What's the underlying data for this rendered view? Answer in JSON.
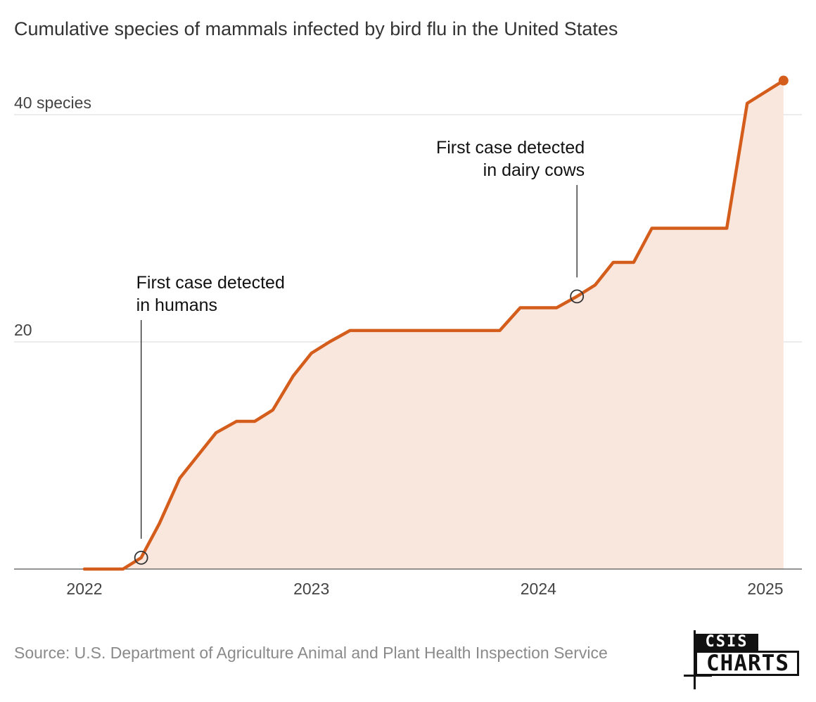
{
  "header": {
    "title": "Cumulative species of mammals infected by bird flu in the United States"
  },
  "chart_data": {
    "type": "area",
    "title": "Cumulative species of mammals infected by bird flu in the United States",
    "xlabel": "",
    "ylabel": "",
    "xlim": [
      2021.85,
      2025.17
    ],
    "ylim": [
      0,
      44
    ],
    "x_ticks": [
      {
        "value": 2022,
        "label": "2022"
      },
      {
        "value": 2023,
        "label": "2023"
      },
      {
        "value": 2024,
        "label": "2024"
      },
      {
        "value": 2025,
        "label": "2025"
      }
    ],
    "y_ticks": [
      {
        "value": 0,
        "label": ""
      },
      {
        "value": 20,
        "label": "20"
      },
      {
        "value": 40,
        "label": "40 species"
      }
    ],
    "grid": true,
    "colors": {
      "line": "#d45d1c",
      "area": "#f9e7de",
      "grid": "#d9d9d9",
      "axis": "#555555",
      "marker": "#333333"
    },
    "series": [
      {
        "x": [
          2022.0,
          2022.17,
          2022.25,
          2022.33,
          2022.42,
          2022.5,
          2022.58,
          2022.67,
          2022.75,
          2022.83,
          2022.92,
          2023.0,
          2023.08,
          2023.17,
          2023.25,
          2023.5,
          2023.75,
          2023.83,
          2023.92,
          2024.08,
          2024.17,
          2024.25,
          2024.33,
          2024.42,
          2024.5,
          2024.58,
          2024.67,
          2024.75,
          2024.83,
          2024.92,
          2025.08
        ],
        "y": [
          0,
          0,
          1,
          4,
          8,
          10,
          12,
          13,
          13,
          14,
          17,
          19,
          20,
          21,
          21,
          21,
          21,
          21,
          23,
          23,
          24,
          25,
          27,
          27,
          30,
          30,
          30,
          30,
          30,
          41,
          43
        ]
      }
    ],
    "annotations": [
      {
        "x": 2022.25,
        "y": 1,
        "label_lines": [
          "First case detected",
          "in humans"
        ],
        "align": "left"
      },
      {
        "x": 2024.17,
        "y": 24,
        "label_lines": [
          "First case detected",
          "in dairy cows"
        ],
        "align": "right"
      }
    ]
  },
  "footer": {
    "source": "Source: U.S. Department of Agriculture Animal and Plant Health Inspection Service",
    "logo_top": "CSIS",
    "logo_main": "CHARTS"
  }
}
